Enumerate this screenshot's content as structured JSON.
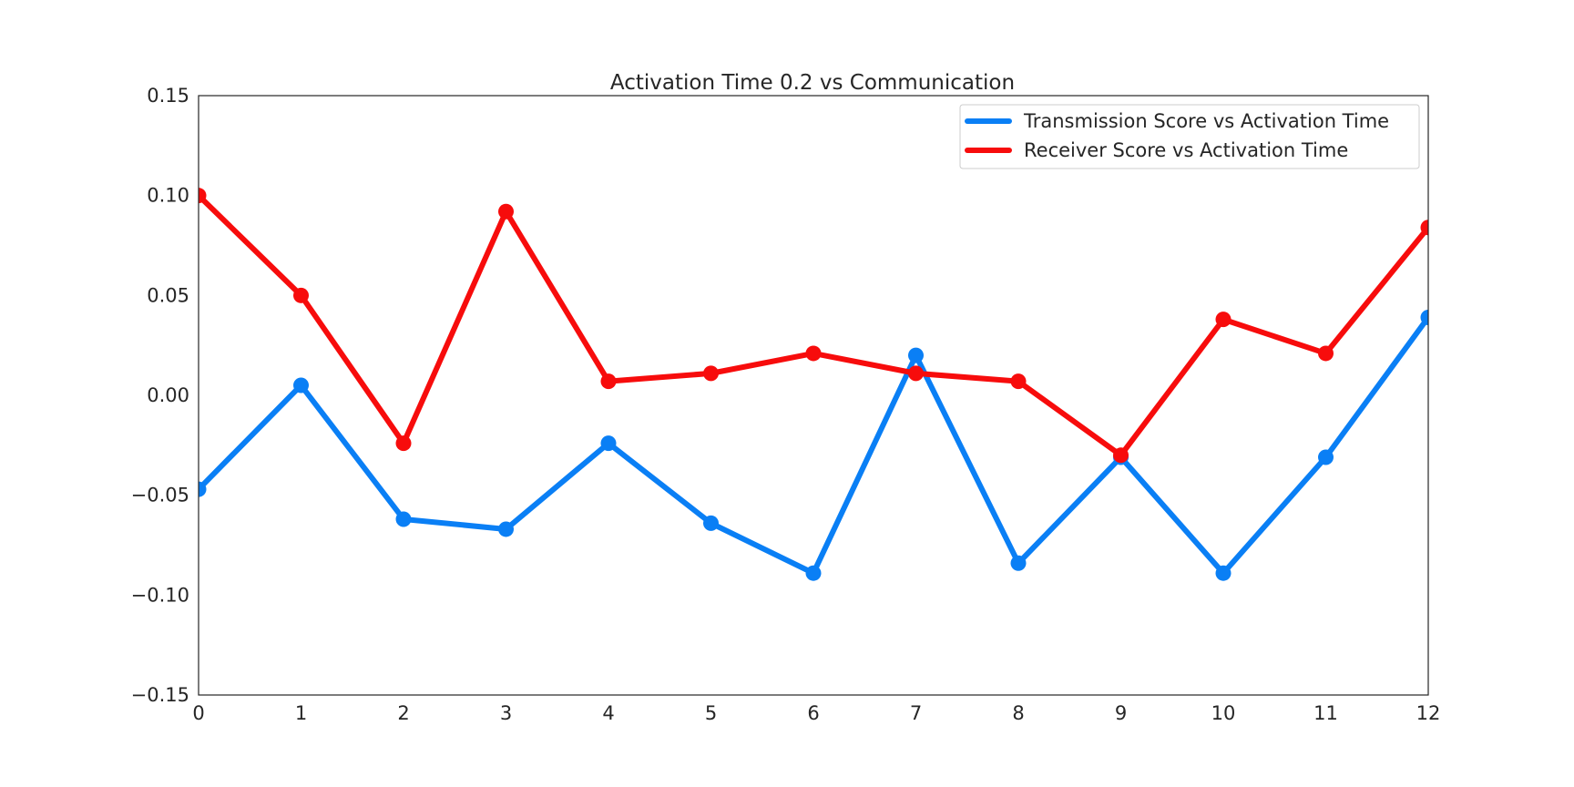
{
  "chart_data": {
    "type": "line",
    "title": "Activation Time 0.2 vs Communication",
    "xlabel": "",
    "ylabel": "",
    "x": [
      0,
      1,
      2,
      3,
      4,
      5,
      6,
      7,
      8,
      9,
      10,
      11,
      12
    ],
    "xlim": [
      0,
      12
    ],
    "ylim": [
      -0.15,
      0.15
    ],
    "x_ticks": [
      "0",
      "1",
      "2",
      "3",
      "4",
      "5",
      "6",
      "7",
      "8",
      "9",
      "10",
      "11",
      "12"
    ],
    "y_ticks": [
      {
        "value": 0.15,
        "label": "0.15"
      },
      {
        "value": 0.1,
        "label": "0.10"
      },
      {
        "value": 0.05,
        "label": "0.05"
      },
      {
        "value": 0.0,
        "label": "0.00"
      },
      {
        "value": -0.05,
        "label": "−0.05"
      },
      {
        "value": -0.1,
        "label": "−0.10"
      },
      {
        "value": -0.15,
        "label": "−0.15"
      }
    ],
    "grid": false,
    "legend_position": "top-right",
    "series": [
      {
        "name": "Transmission Score vs Activation Time",
        "color": "#0a7ff5",
        "values": [
          -0.047,
          0.005,
          -0.062,
          -0.067,
          -0.024,
          -0.064,
          -0.089,
          0.02,
          -0.084,
          -0.031,
          -0.089,
          -0.031,
          0.039
        ]
      },
      {
        "name": "Receiver Score vs Activation Time",
        "color": "#f70c0c",
        "values": [
          0.1,
          0.05,
          -0.024,
          0.092,
          0.007,
          0.011,
          0.021,
          0.011,
          0.007,
          -0.03,
          0.038,
          0.021,
          0.084
        ]
      }
    ]
  }
}
